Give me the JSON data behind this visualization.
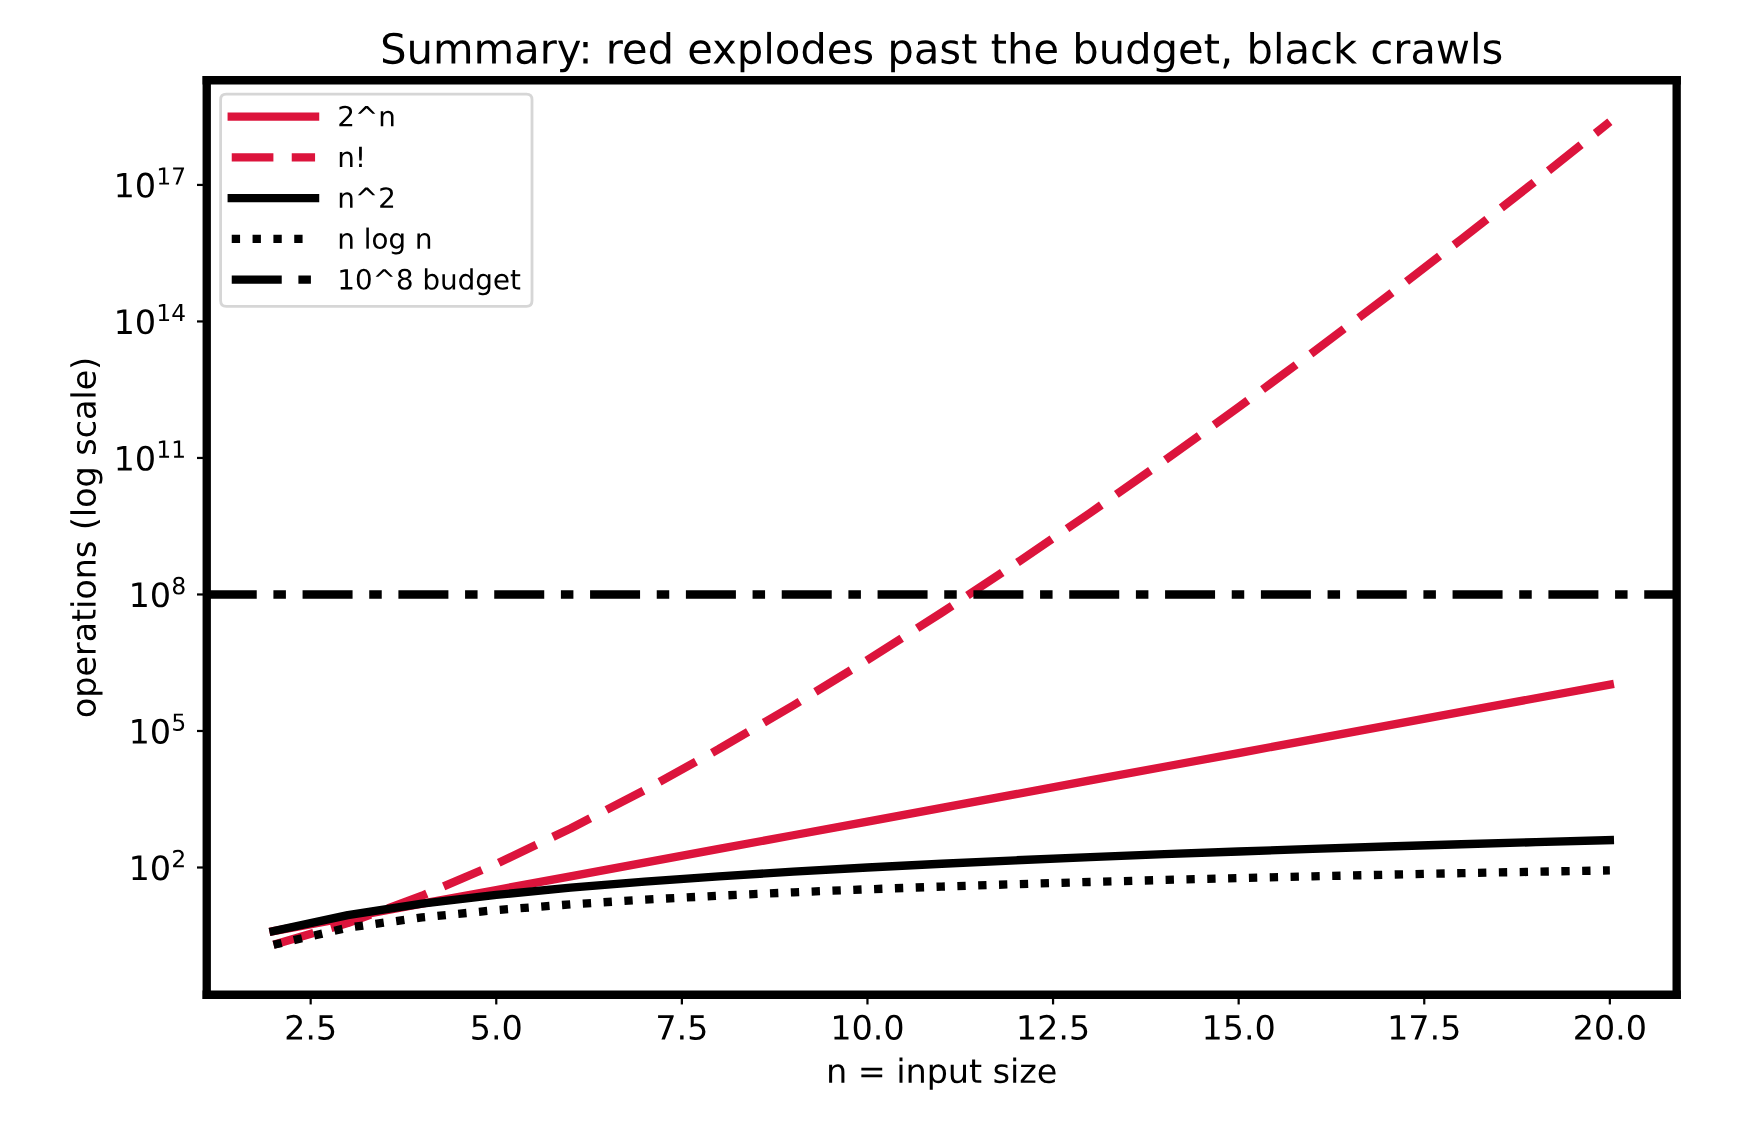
{
  "chart_data": {
    "type": "line",
    "title": "Summary: red explodes past the budget, black crawls",
    "xlabel": "n = input size",
    "ylabel": "operations (log scale)",
    "x": [
      2,
      3,
      4,
      5,
      6,
      7,
      8,
      9,
      10,
      11,
      12,
      13,
      14,
      15,
      16,
      17,
      18,
      19,
      20
    ],
    "series": [
      {
        "name": "2^n",
        "color": "#dc143c",
        "line_style": "solid",
        "values": [
          4,
          8,
          16,
          32,
          64,
          128,
          256,
          512,
          1024,
          2048,
          4096,
          8192,
          16384,
          32768,
          65536,
          131072,
          262144,
          524288,
          1048576
        ]
      },
      {
        "name": "n!",
        "color": "#dc143c",
        "line_style": "dashed",
        "values": [
          2,
          6,
          24,
          120,
          720,
          5040,
          40320,
          362880,
          3628800,
          39916800,
          479001600,
          6227020800,
          87178291200,
          1307674368000,
          20922789888000,
          355687428096000,
          6402373705728000,
          121645100408832000,
          2432902008176640000
        ]
      },
      {
        "name": "n^2",
        "color": "#000000",
        "line_style": "solid",
        "values": [
          4,
          9,
          16,
          25,
          36,
          49,
          64,
          81,
          100,
          121,
          144,
          169,
          196,
          225,
          256,
          289,
          324,
          361,
          400
        ]
      },
      {
        "name": "n log n",
        "color": "#000000",
        "line_style": "dotted",
        "values": [
          2,
          4.75,
          8,
          11.61,
          15.51,
          19.65,
          24,
          28.53,
          33.22,
          38.05,
          43.02,
          48.11,
          53.3,
          58.6,
          64,
          69.49,
          75.06,
          80.71,
          86.44
        ]
      }
    ],
    "ref_lines": [
      {
        "axis": "y",
        "value": 100000000,
        "label": "10^8 budget",
        "color": "#000000",
        "line_style": "dashdot"
      }
    ],
    "log": "y",
    "xlim": [
      1.1,
      20.9
    ],
    "xticks": [
      {
        "value": 2.5,
        "label": "2.5"
      },
      {
        "value": 5,
        "label": "5.0"
      },
      {
        "value": 7.5,
        "label": "7.5"
      },
      {
        "value": 10,
        "label": "10.0"
      },
      {
        "value": 12.5,
        "label": "12.5"
      },
      {
        "value": 15,
        "label": "15.0"
      },
      {
        "value": 17.5,
        "label": "17.5"
      },
      {
        "value": 20,
        "label": "20.0"
      }
    ],
    "ylim": [
      0.16,
      2e+19
    ],
    "yticks": [
      {
        "value": 100,
        "label": "10$^{2}$"
      },
      {
        "value": 100000,
        "label": "10$^{5}$"
      },
      {
        "value": 100000000,
        "label": "10$^{8}$"
      },
      {
        "value": 100000000000,
        "label": "10$^{11}$"
      },
      {
        "value": 100000000000000,
        "label": "10$^{14}$"
      },
      {
        "value": 100000000000000000,
        "label": "10$^{17}$"
      }
    ],
    "grid": false,
    "legend": "top left"
  }
}
